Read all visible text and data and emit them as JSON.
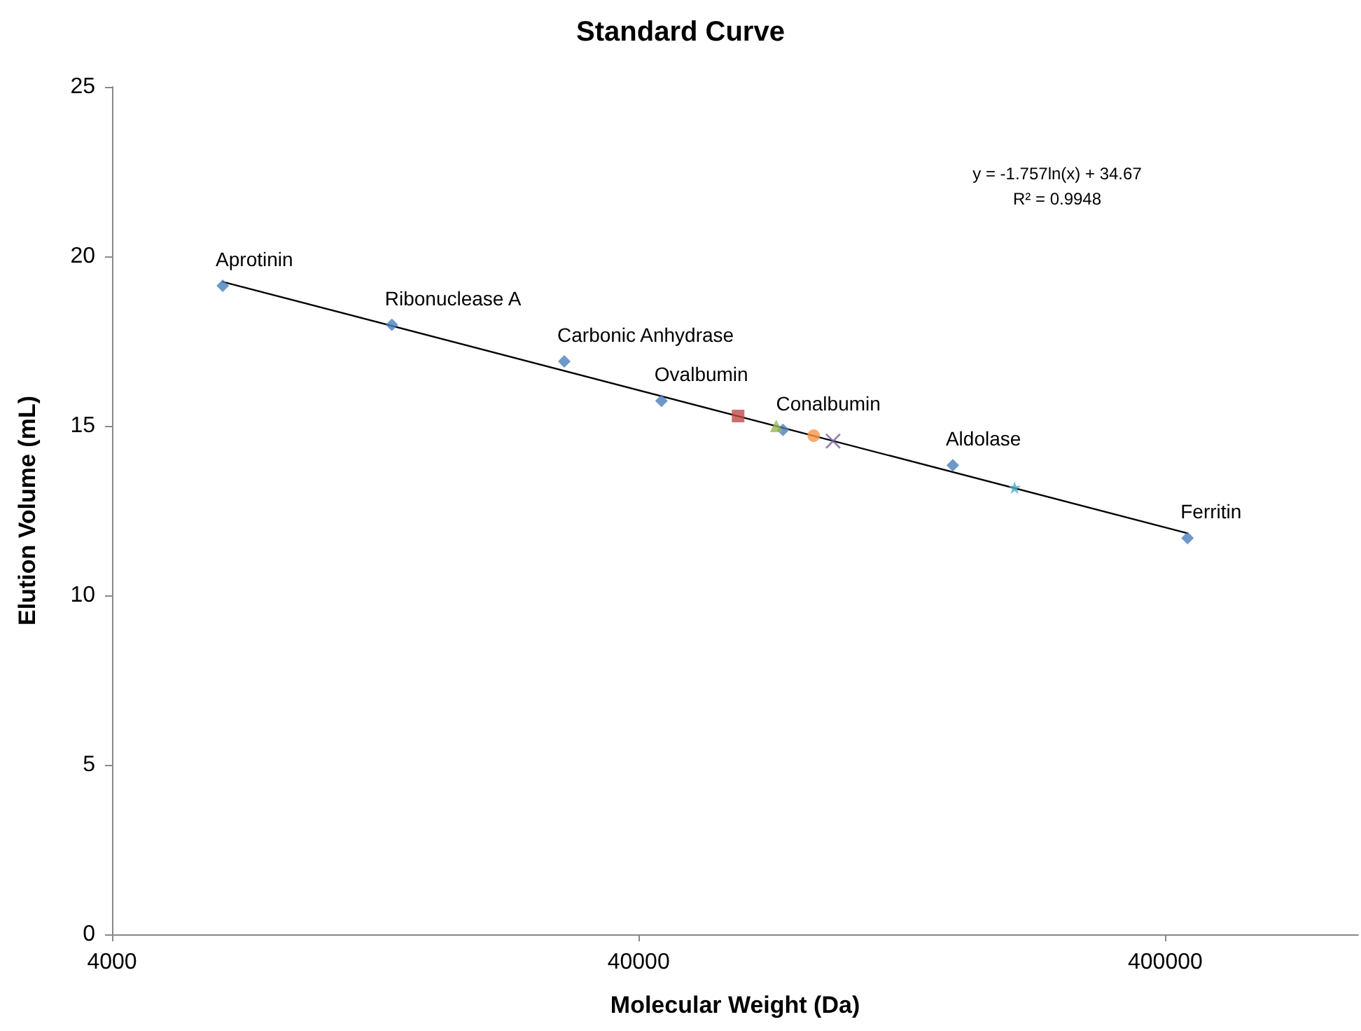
{
  "chart_data": {
    "type": "scatter",
    "title": "Standard Curve",
    "xlabel": "Molecular Weight (Da)",
    "ylabel": "Elution Volume (mL)",
    "log": "x",
    "xlim": [
      4000,
      930000
    ],
    "xticks": [
      4000,
      40000,
      400000
    ],
    "ylim": [
      0,
      25
    ],
    "yticks": [
      0,
      5,
      10,
      15,
      20,
      25
    ],
    "grid": false,
    "series": [
      {
        "marker": "diamond",
        "color": "#4a7ebb",
        "x": [
          6490,
          13600,
          28900,
          44200,
          75200,
          158000,
          441000
        ],
        "values": [
          19.13,
          17.98,
          16.9,
          15.74,
          14.88,
          13.84,
          11.69
        ]
      },
      {
        "marker": "square",
        "color": "#be4b48",
        "x": [
          61800
        ],
        "values": [
          15.29
        ]
      },
      {
        "marker": "triangle",
        "color": "#98b954",
        "x": [
          73000
        ],
        "values": [
          15.0
        ]
      },
      {
        "marker": "circle",
        "color": "#f79646",
        "x": [
          86000
        ],
        "values": [
          14.71
        ]
      },
      {
        "marker": "cross",
        "color": "#7d60a0",
        "x": [
          93600
        ],
        "values": [
          14.55
        ]
      },
      {
        "marker": "star",
        "color": "#4bacc6",
        "x": [
          207000
        ],
        "values": [
          13.18
        ]
      },
      {
        "type": "line",
        "marker": "none",
        "line_style": "solid",
        "color": "#000000",
        "x": [
          6490,
          441000
        ],
        "values": [
          19.25,
          11.83
        ]
      }
    ],
    "annotations": [
      {
        "text": "Aprotinin",
        "x": 6490,
        "y": 19.13
      },
      {
        "text": "Ribonuclease A",
        "x": 13600,
        "y": 17.98
      },
      {
        "text": "Carbonic Anhydrase",
        "x": 28900,
        "y": 16.9
      },
      {
        "text": "Ovalbumin",
        "x": 44200,
        "y": 15.74
      },
      {
        "text": "Conalbumin",
        "x": 75200,
        "y": 14.88
      },
      {
        "text": "Aldolase",
        "x": 158000,
        "y": 13.84
      },
      {
        "text": "Ferritin",
        "x": 441000,
        "y": 11.69
      },
      "y = -1.757ln(x) + 34.67",
      "R² = 0.9948"
    ]
  }
}
